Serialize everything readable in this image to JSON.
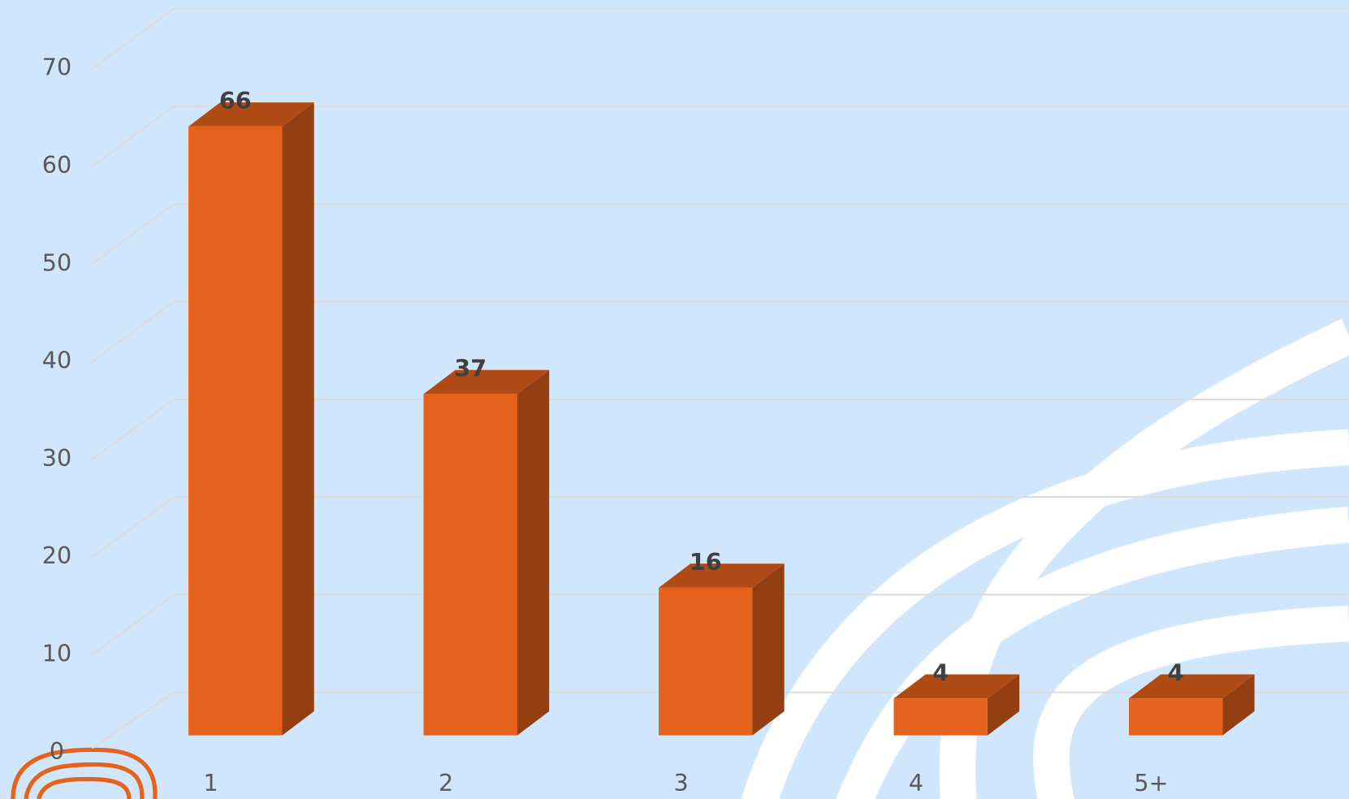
{
  "chart_data": {
    "type": "bar",
    "categories": [
      "1",
      "2",
      "3",
      "4",
      "5+"
    ],
    "values": [
      66,
      37,
      16,
      4,
      4
    ],
    "color": "#e5621c",
    "ylim": [
      0,
      70
    ],
    "yticks": [
      0,
      10,
      20,
      30,
      40,
      50,
      60,
      70
    ],
    "grid": true
  }
}
